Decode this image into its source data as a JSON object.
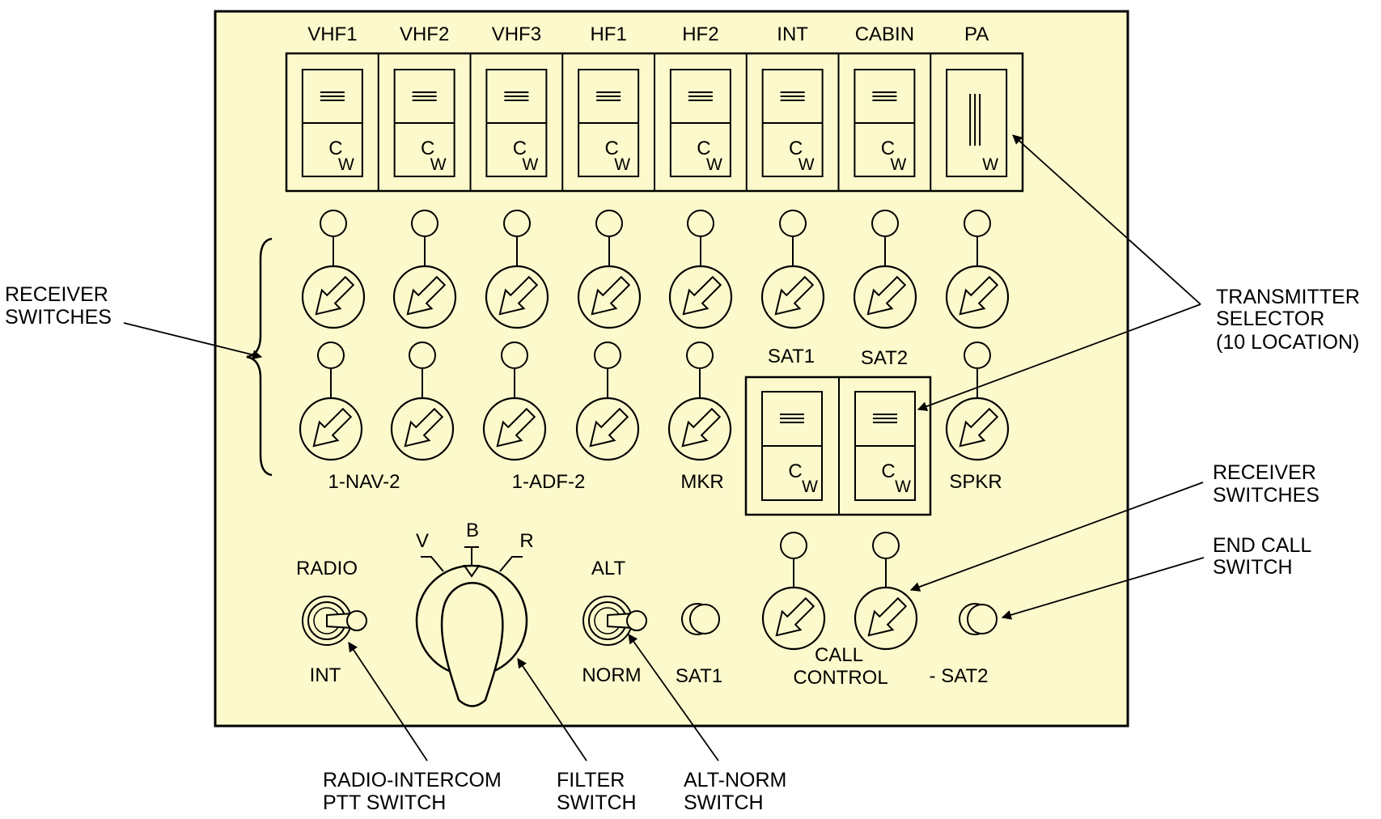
{
  "panel": {
    "background": "#fcfacc",
    "line_color": "#000000"
  },
  "transmitter_selectors": [
    {
      "label": "VHF1",
      "top_mark": "≡",
      "bottom_mark": "C",
      "sub": "W"
    },
    {
      "label": "VHF2",
      "top_mark": "≡",
      "bottom_mark": "C",
      "sub": "W"
    },
    {
      "label": "VHF3",
      "top_mark": "≡",
      "bottom_mark": "C",
      "sub": "W"
    },
    {
      "label": "HF1",
      "top_mark": "≡",
      "bottom_mark": "C",
      "sub": "W"
    },
    {
      "label": "HF2",
      "top_mark": "≡",
      "bottom_mark": "C",
      "sub": "W"
    },
    {
      "label": "INT",
      "top_mark": "≡",
      "bottom_mark": "C",
      "sub": "W"
    },
    {
      "label": "CABIN",
      "top_mark": "≡",
      "bottom_mark": "C",
      "sub": "W"
    },
    {
      "label": "PA",
      "top_mark": "|||",
      "bottom_mark": "",
      "sub": "W"
    }
  ],
  "sat_selectors": [
    {
      "label": "SAT1",
      "bottom_mark": "C",
      "sub": "W"
    },
    {
      "label": "SAT2",
      "bottom_mark": "C",
      "sub": "W"
    }
  ],
  "receiver_rows": {
    "row1_count": 8,
    "row2_count": 6,
    "row2_labels": [
      "1-NAV-2",
      "1-ADF-2",
      "MKR",
      "SPKR"
    ]
  },
  "bottom_controls": {
    "radio_top": "RADIO",
    "radio_bottom": "INT",
    "filter_v": "V",
    "filter_b": "B",
    "filter_r": "R",
    "alt_top": "ALT",
    "alt_bottom": "NORM",
    "sat1_label": "SAT1",
    "call_line1": "CALL",
    "call_line2": "CONTROL",
    "sat2_label": "- SAT2"
  },
  "callouts": {
    "receiver_switches_left": [
      "RECEIVER",
      "SWITCHES"
    ],
    "transmitter_selector": [
      "TRANSMITTER",
      "SELECTOR",
      "(10 LOCATION)"
    ],
    "receiver_switches_right": [
      "RECEIVER",
      "SWITCHES"
    ],
    "end_call_switch": [
      "END CALL",
      "SWITCH"
    ],
    "radio_intercom": [
      "RADIO-INTERCOM",
      "PTT SWITCH"
    ],
    "filter_switch": [
      "FILTER",
      "SWITCH"
    ],
    "alt_norm_switch": [
      "ALT-NORM",
      "SWITCH"
    ]
  }
}
